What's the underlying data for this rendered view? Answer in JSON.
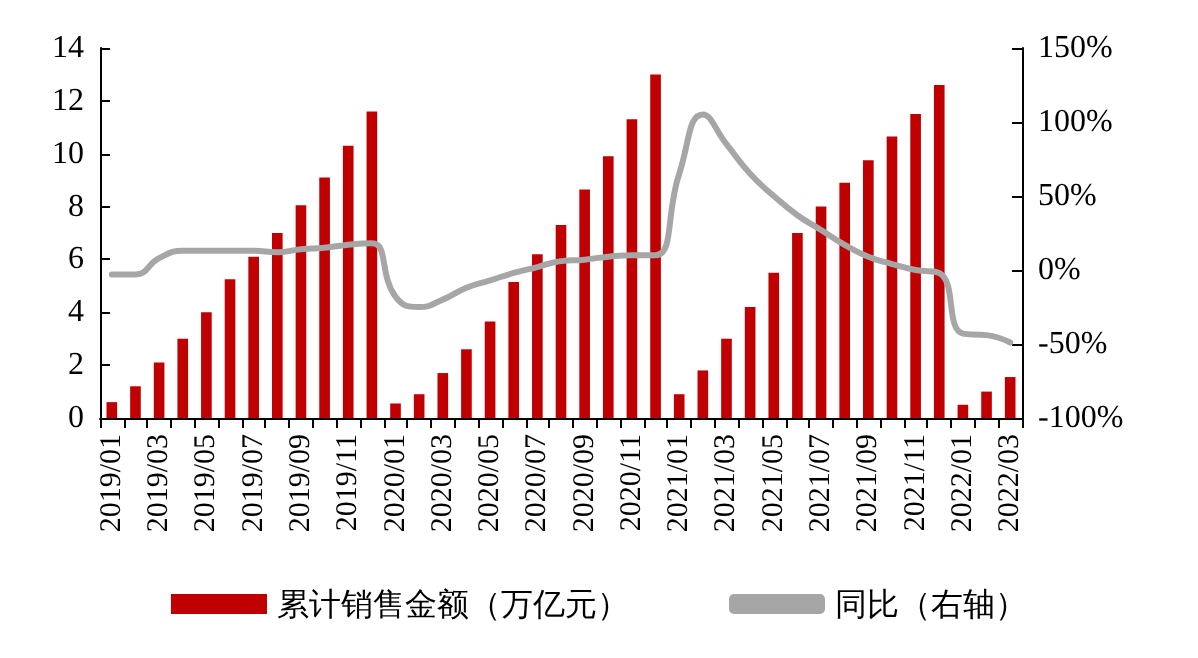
{
  "chart_data": {
    "type": "bar",
    "categories": [
      "2019/01",
      null,
      "2019/03",
      null,
      "2019/05",
      null,
      "2019/07",
      null,
      "2019/09",
      null,
      "2019/11",
      null,
      "2020/01",
      null,
      "2020/03",
      null,
      "2020/05",
      null,
      "2020/07",
      null,
      "2020/09",
      null,
      "2020/11",
      null,
      "2021/01",
      null,
      "2021/03",
      null,
      "2021/05",
      null,
      "2021/07",
      null,
      "2021/09",
      null,
      "2021/11",
      null,
      "2022/01",
      null,
      "2022/03"
    ],
    "series": [
      {
        "name": "累计销售金额（万亿元）",
        "color": "#c00000",
        "values": [
          0.6,
          1.2,
          2.1,
          3.0,
          4.0,
          5.25,
          6.1,
          7.0,
          8.05,
          9.1,
          10.3,
          11.6,
          0.55,
          0.9,
          1.7,
          2.6,
          3.65,
          5.15,
          6.2,
          7.3,
          8.65,
          9.9,
          11.3,
          13.0,
          0.9,
          1.8,
          3.0,
          4.2,
          5.5,
          7.0,
          8.0,
          8.9,
          9.75,
          10.65,
          11.5,
          12.6,
          0.5,
          1.0,
          1.55
        ]
      },
      {
        "name": "同比（右轴）",
        "type": "line",
        "axis": "y2",
        "color": "#a6a6a6",
        "values": [
          -3,
          -3,
          8,
          13,
          13,
          13,
          13,
          12,
          14,
          15,
          17,
          18,
          -18,
          -25,
          -20,
          -12,
          -7,
          -2,
          2,
          6,
          7,
          9,
          10,
          10,
          65,
          105,
          85,
          65,
          50,
          37,
          27,
          17,
          9,
          4,
          0,
          -2,
          -43,
          -44,
          -49
        ]
      }
    ],
    "ylim": [
      0,
      14
    ],
    "yticks": [
      0,
      2,
      4,
      6,
      8,
      10,
      12,
      14
    ],
    "y2lim": [
      -100,
      150
    ],
    "y2ticks": [
      {
        "value": -100,
        "label": "-100%"
      },
      {
        "value": -50,
        "label": "-50%"
      },
      {
        "value": 0,
        "label": "0%"
      },
      {
        "value": 50,
        "label": "50%"
      },
      {
        "value": 100,
        "label": "100%"
      },
      {
        "value": 150,
        "label": "150%"
      }
    ],
    "grid": false,
    "legend": "bottom",
    "marker": "none",
    "line_style": "solid"
  }
}
